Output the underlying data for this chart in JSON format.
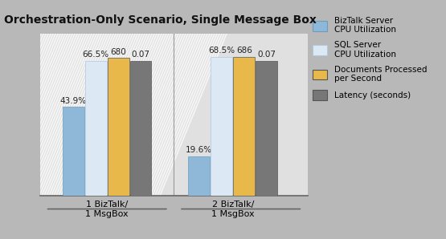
{
  "title": "Orchestration-Only Scenario, Single Message Box",
  "groups": [
    "1 BizTalk/\n1 MsgBox",
    "2 BizTalk/\n1 MsgBox"
  ],
  "series": [
    {
      "label": "BizTalk Server\nCPU Utilization",
      "values": [
        43.9,
        19.6
      ],
      "color": "#8fb8d8",
      "display": [
        "43.9%",
        "19.6%"
      ]
    },
    {
      "label": "SQL Server\nCPU Utilization",
      "values": [
        66.5,
        68.5
      ],
      "color": "#dce9f5",
      "display": [
        "66.5%",
        "68.5%"
      ]
    },
    {
      "label": "Documents Processed\nper Second",
      "values": [
        68.0,
        68.5
      ],
      "color": "#e8b84b",
      "display": [
        "680",
        "686"
      ]
    },
    {
      "label": "Latency (seconds)",
      "values": [
        66.5,
        66.5
      ],
      "color": "#777777",
      "display": [
        "0.07",
        "0.07"
      ]
    }
  ],
  "bar_width": 0.08,
  "ylim": [
    0,
    80
  ],
  "background_color": "#b8b8b8",
  "plot_bg_color": "#e0e0e0",
  "title_fontsize": 10,
  "label_fontsize": 7.5,
  "tick_fontsize": 8,
  "legend_fontsize": 7.5,
  "stripe_color": "#cccccc",
  "stripe_alpha": 1.0
}
